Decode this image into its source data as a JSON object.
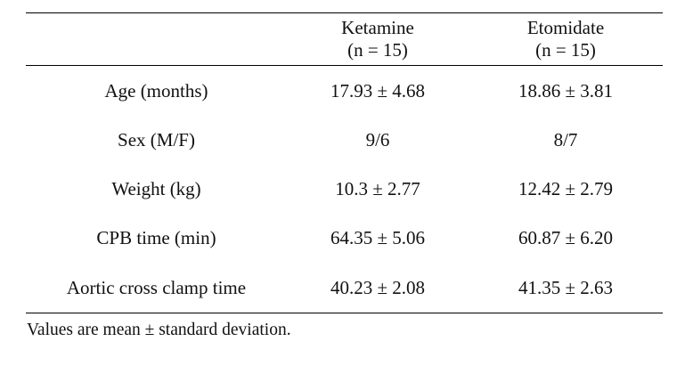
{
  "table": {
    "columns": [
      {
        "line1": "",
        "line2": ""
      },
      {
        "line1": "Ketamine",
        "line2": "(n = 15)"
      },
      {
        "line1": "Etomidate",
        "line2": "(n = 15)"
      }
    ],
    "rows": [
      {
        "label": "Age (months)",
        "ketamine": "17.93 ± 4.68",
        "etomidate": "18.86 ± 3.81"
      },
      {
        "label": "Sex (M/F)",
        "ketamine": "9/6",
        "etomidate": "8/7"
      },
      {
        "label": "Weight (kg)",
        "ketamine": "10.3 ± 2.77",
        "etomidate": "12.42 ± 2.79"
      },
      {
        "label": "CPB time (min)",
        "ketamine": "64.35 ± 5.06",
        "etomidate": "60.87 ± 6.20"
      },
      {
        "label": "Aortic cross clamp time",
        "ketamine": "40.23 ± 2.08",
        "etomidate": "41.35 ± 2.63"
      }
    ]
  },
  "footnote": "Values are mean ± standard deviation."
}
